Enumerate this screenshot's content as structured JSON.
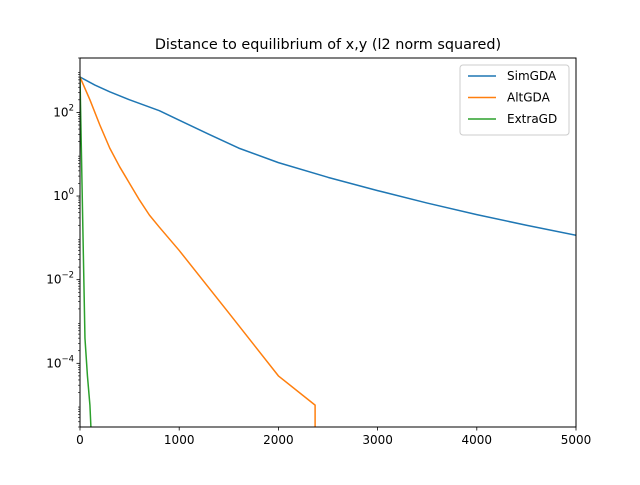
{
  "chart_data": {
    "type": "line",
    "title": "Distance to equilibrium of x,y (l2 norm squared)",
    "xlabel": "",
    "ylabel": "",
    "x_scale": "linear",
    "y_scale": "log",
    "xlim": [
      0,
      5000
    ],
    "ylim": [
      3e-06,
      2000
    ],
    "grid": false,
    "legend_position": "top-right",
    "x_ticks": [
      {
        "value": 0,
        "label": "0"
      },
      {
        "value": 1000,
        "label": "1000"
      },
      {
        "value": 2000,
        "label": "2000"
      },
      {
        "value": 3000,
        "label": "3000"
      },
      {
        "value": 4000,
        "label": "4000"
      },
      {
        "value": 5000,
        "label": "5000"
      }
    ],
    "y_ticks": [
      {
        "value": 100,
        "base": "10",
        "exponent": "2"
      },
      {
        "value": 1,
        "base": "10",
        "exponent": "0"
      },
      {
        "value": 0.01,
        "base": "10",
        "exponent": "−2"
      },
      {
        "value": 0.0001,
        "base": "10",
        "exponent": "−4"
      }
    ],
    "series": [
      {
        "name": "SimGDA",
        "color": "#1f77b4",
        "points": [
          [
            0,
            700
          ],
          [
            150,
            450
          ],
          [
            300,
            310
          ],
          [
            500,
            200
          ],
          [
            800,
            110
          ],
          [
            1000,
            65
          ],
          [
            1300,
            30
          ],
          [
            1600,
            14
          ],
          [
            2000,
            6.3
          ],
          [
            2500,
            2.8
          ],
          [
            3000,
            1.35
          ],
          [
            3500,
            0.68
          ],
          [
            4000,
            0.36
          ],
          [
            4500,
            0.2
          ],
          [
            5000,
            0.115
          ]
        ]
      },
      {
        "name": "AltGDA",
        "color": "#ff7f0e",
        "points": [
          [
            0,
            700
          ],
          [
            100,
            200
          ],
          [
            200,
            50
          ],
          [
            300,
            14
          ],
          [
            400,
            5
          ],
          [
            500,
            2
          ],
          [
            600,
            0.8
          ],
          [
            700,
            0.35
          ],
          [
            800,
            0.18
          ],
          [
            1000,
            0.05
          ],
          [
            1500,
            0.0016
          ],
          [
            2000,
            5e-05
          ],
          [
            2370,
            1e-05
          ],
          [
            2370,
            3e-06
          ]
        ]
      },
      {
        "name": "ExtraGD",
        "color": "#2ca02c",
        "points": [
          [
            0,
            700
          ],
          [
            25,
            0.5
          ],
          [
            50,
            0.0004
          ],
          [
            75,
            5e-05
          ],
          [
            100,
            1e-05
          ],
          [
            110,
            3e-06
          ]
        ]
      }
    ]
  }
}
